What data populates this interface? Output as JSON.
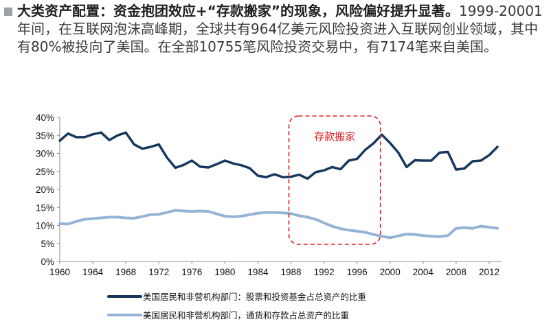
{
  "headline": {
    "title": "大类资产配置：资金抱团效应+“存款搬家”的现象，风险偏好提升显著。",
    "body": "1999-20001年间，在互联网泡沫高峰期，全球共有964亿美元风险投资进入互联网创业领域，其中有80%被投向了美国。在全部10755笔风险投资交易中，有7174笔来自美国。"
  },
  "chart_data": {
    "type": "line",
    "title": "",
    "xlabel": "",
    "ylabel": "",
    "x": [
      1960,
      1961,
      1962,
      1963,
      1964,
      1965,
      1966,
      1967,
      1968,
      1969,
      1970,
      1971,
      1972,
      1973,
      1974,
      1975,
      1976,
      1977,
      1978,
      1979,
      1980,
      1981,
      1982,
      1983,
      1984,
      1985,
      1986,
      1987,
      1988,
      1989,
      1990,
      1991,
      1992,
      1993,
      1994,
      1995,
      1996,
      1997,
      1998,
      1999,
      2000,
      2001,
      2002,
      2003,
      2004,
      2005,
      2006,
      2007,
      2008,
      2009,
      2010,
      2011,
      2012,
      2013
    ],
    "xlim": [
      1960,
      2013.5
    ],
    "x_ticks": [
      1960,
      1964,
      1968,
      1972,
      1976,
      1980,
      1984,
      1988,
      1992,
      1996,
      2000,
      2004,
      2008,
      2012
    ],
    "x_tick_labels": [
      "1960",
      "1964",
      "1968",
      "1972",
      "1976",
      "1980",
      "1984",
      "1988",
      "1992",
      "1996",
      "2000",
      "2004",
      "2008",
      "2012"
    ],
    "ylim": [
      0,
      40
    ],
    "y_ticks": [
      0,
      5,
      10,
      15,
      20,
      25,
      30,
      35,
      40
    ],
    "y_tick_labels": [
      "0%",
      "5%",
      "10%",
      "15%",
      "20%",
      "25%",
      "30%",
      "35%",
      "40%"
    ],
    "series": [
      {
        "name": "美国居民和非营机构部门：股票和投资基金占总资产的比重",
        "color": "#17375e",
        "values": [
          33.5,
          35.5,
          34.5,
          34.5,
          35.3,
          35.8,
          33.7,
          35,
          35.8,
          32.5,
          31.3,
          31.8,
          32.5,
          28.8,
          26,
          26.8,
          28,
          26.3,
          26.1,
          27,
          28,
          27.2,
          26.7,
          25.9,
          23.8,
          23.4,
          24.2,
          23.4,
          23.5,
          24.1,
          23,
          24.8,
          25.3,
          26.2,
          25.6,
          28,
          28.5,
          31,
          32.8,
          35.2,
          32.9,
          30.2,
          26.2,
          28.1,
          28,
          28,
          30.2,
          30.4,
          25.5,
          25.8,
          27.8,
          28,
          29.5,
          31.8
        ]
      },
      {
        "name": "美国居民和非营机构部门，通货和存款占总资产的比重",
        "color": "#95b3d7",
        "values": [
          10.5,
          10.4,
          11.1,
          11.7,
          11.9,
          12.1,
          12.3,
          12.3,
          12.1,
          12,
          12.5,
          13,
          13.1,
          13.6,
          14.2,
          14,
          13.9,
          14,
          13.9,
          13.2,
          12.6,
          12.4,
          12.6,
          13,
          13.4,
          13.6,
          13.6,
          13.5,
          13.3,
          12.7,
          12.3,
          11.7,
          10.7,
          9.8,
          9.1,
          8.7,
          8.4,
          8.1,
          7.5,
          7,
          6.6,
          7.1,
          7.6,
          7.5,
          7.2,
          7,
          6.9,
          7.2,
          9.2,
          9.4,
          9.2,
          9.8,
          9.5,
          9.2
        ]
      }
    ],
    "annotation": {
      "text": "存款搬家",
      "x_range": [
        1988,
        1999
      ]
    },
    "legend_position": "bottom"
  }
}
